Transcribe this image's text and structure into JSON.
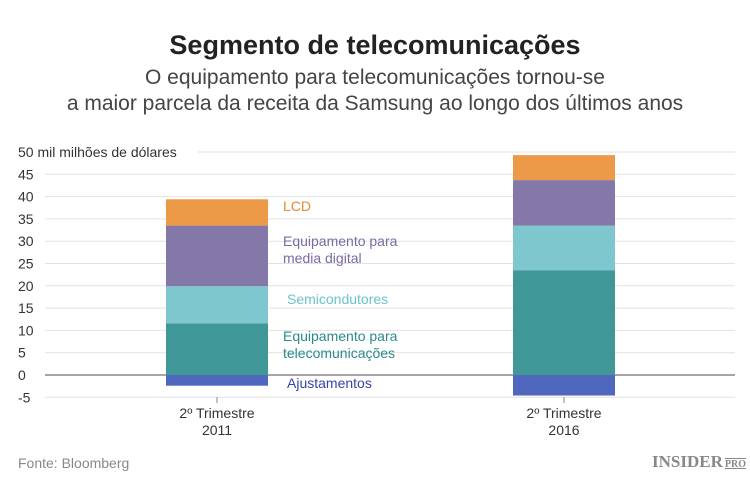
{
  "title": "Segmento de telecomunicações",
  "subtitle_lines": [
    "O equipamento para telecomunicações tornou-se",
    "a maior parcela da receita da Samsung ao longo dos últimos anos"
  ],
  "source": "Fonte: Bloomberg",
  "logo": {
    "main": "INSIDER",
    "suffix": "PRO"
  },
  "chart_data": {
    "type": "bar",
    "stacked": true,
    "ylabel": "50 mil milhões de dólares",
    "ylim": [
      -5,
      50
    ],
    "yticks": [
      -5,
      0,
      5,
      10,
      15,
      20,
      25,
      30,
      35,
      40,
      45,
      50
    ],
    "grid": true,
    "categories": [
      "2º Trimestre\n2011",
      "2º Trimestre\n2016"
    ],
    "series": [
      {
        "name": "Ajustamentos",
        "color": "#4f68bd",
        "values": [
          -2.4,
          -4.6
        ]
      },
      {
        "name": "Equipamento para\ntelecomunicações",
        "color": "#3f9797",
        "label_color": "#2a8a88",
        "values": [
          11.6,
          23.5
        ]
      },
      {
        "name": "Semicondutores",
        "color": "#7fc7cf",
        "label_color": "#6bc3cc",
        "values": [
          8.3,
          10.0
        ]
      },
      {
        "name": "Equipamento para\nmedia digital",
        "color": "#8478a8",
        "label_color": "#7b6aa6",
        "values": [
          13.6,
          10.2
        ]
      },
      {
        "name": "LCD",
        "color": "#ec9a48",
        "label_color": "#e88a2e",
        "values": [
          5.9,
          5.6
        ]
      }
    ]
  }
}
